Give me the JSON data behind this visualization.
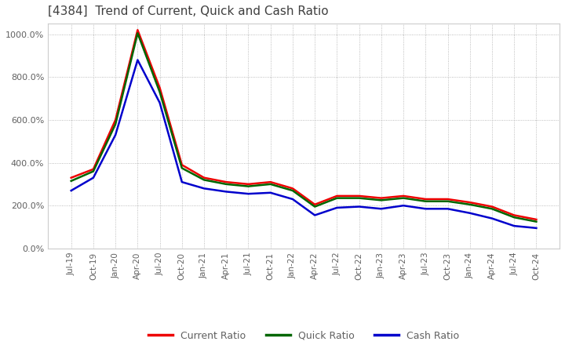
{
  "title": "[4384]  Trend of Current, Quick and Cash Ratio",
  "title_color": "#404040",
  "background_color": "#ffffff",
  "plot_bg_color": "#ffffff",
  "grid_color": "#aaaaaa",
  "ylim": [
    0,
    1050
  ],
  "yticks": [
    0,
    200,
    400,
    600,
    800,
    1000
  ],
  "legend_labels": [
    "Current Ratio",
    "Quick Ratio",
    "Cash Ratio"
  ],
  "legend_colors": [
    "#ee0000",
    "#006600",
    "#0000cc"
  ],
  "x_labels": [
    "Jul-19",
    "Oct-19",
    "Jan-20",
    "Apr-20",
    "Jul-20",
    "Oct-20",
    "Jan-21",
    "Apr-21",
    "Jul-21",
    "Oct-21",
    "Jan-22",
    "Apr-22",
    "Jul-22",
    "Oct-22",
    "Jan-23",
    "Apr-23",
    "Jul-23",
    "Oct-23",
    "Jan-24",
    "Apr-24",
    "Jul-24",
    "Oct-24"
  ],
  "current_ratio": [
    330,
    370,
    600,
    1020,
    750,
    390,
    330,
    310,
    300,
    310,
    280,
    205,
    245,
    245,
    235,
    245,
    230,
    230,
    215,
    195,
    155,
    135
  ],
  "quick_ratio": [
    315,
    360,
    580,
    1005,
    730,
    375,
    320,
    300,
    290,
    300,
    270,
    195,
    235,
    235,
    225,
    235,
    220,
    220,
    205,
    185,
    145,
    125
  ],
  "cash_ratio": [
    270,
    330,
    530,
    880,
    680,
    310,
    280,
    265,
    255,
    260,
    230,
    155,
    190,
    195,
    185,
    200,
    185,
    185,
    165,
    140,
    105,
    95
  ],
  "figsize": [
    7.2,
    4.4
  ],
  "dpi": 100
}
